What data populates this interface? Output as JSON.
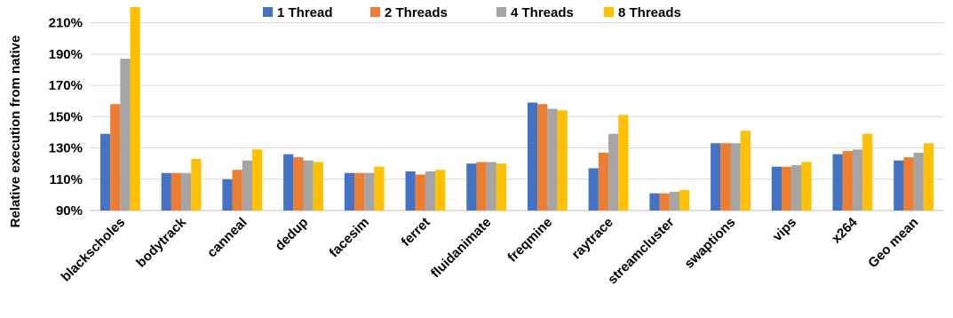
{
  "chart_data": {
    "type": "bar",
    "title": "",
    "xlabel": "",
    "ylabel": "Relative execution from native",
    "ylim": [
      90,
      220
    ],
    "yticks": [
      90,
      110,
      130,
      150,
      170,
      190,
      210
    ],
    "ytick_labels": [
      "90%",
      "110%",
      "130%",
      "150%",
      "170%",
      "190%",
      "210%"
    ],
    "grid": true,
    "legend_position": "top-center",
    "categories": [
      "blackscholes",
      "bodytrack",
      "canneal",
      "dedup",
      "facesim",
      "ferret",
      "fluidanimate",
      "freqmine",
      "raytrace",
      "streamcluster",
      "swaptions",
      "vips",
      "x264",
      "Geo mean"
    ],
    "series": [
      {
        "name": "1 Thread",
        "color": "#4472C4",
        "values": [
          139,
          114,
          110,
          126,
          114,
          115,
          120,
          159,
          117,
          101,
          133,
          118,
          126,
          122
        ]
      },
      {
        "name": "2 Threads",
        "color": "#ED7D31",
        "values": [
          158,
          114,
          116,
          124,
          114,
          113,
          121,
          158,
          127,
          101,
          133,
          118,
          128,
          124
        ]
      },
      {
        "name": "4 Threads",
        "color": "#A5A5A5",
        "values": [
          187,
          114,
          122,
          122,
          114,
          115,
          121,
          155,
          139,
          102,
          133,
          119,
          129,
          127
        ]
      },
      {
        "name": "8 Threads",
        "color": "#FFC000",
        "values": [
          220,
          123,
          129,
          121,
          118,
          116,
          120,
          154,
          151,
          103,
          141,
          121,
          139,
          133
        ]
      }
    ]
  }
}
